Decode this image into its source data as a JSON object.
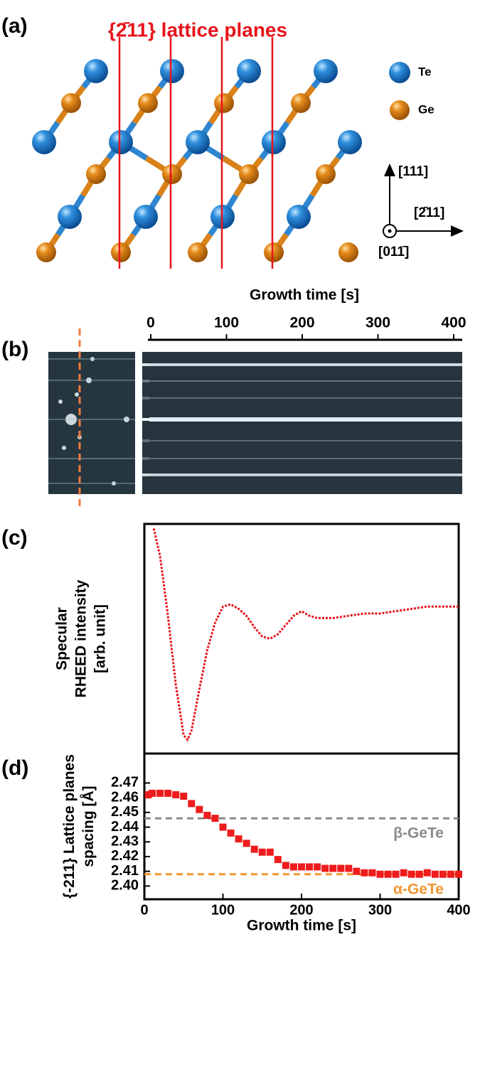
{
  "panel_labels": [
    "(a)",
    "(b)",
    "(c)",
    "(d)"
  ],
  "crystal": {
    "title": "{2̄11} lattice planes",
    "legend": [
      "Te",
      "Ge"
    ],
    "directions": [
      "[111]",
      "[2̄11]",
      "[011̄]"
    ]
  },
  "chart_data": [
    {
      "type": "rheed",
      "xlabel": "Growth time [s]",
      "xlim": [
        0,
        400
      ],
      "xticks": [
        0,
        100,
        200,
        300,
        400
      ]
    },
    {
      "type": "line",
      "ylabel": [
        "Specular",
        "RHEED intensity",
        "[arb. unit]"
      ],
      "color": "#e8141b",
      "xlim": [
        0,
        400
      ],
      "ylim": [
        0,
        10
      ],
      "x": [
        12,
        20,
        30,
        40,
        50,
        55,
        60,
        70,
        80,
        90,
        100,
        110,
        120,
        130,
        140,
        150,
        160,
        170,
        180,
        190,
        200,
        210,
        220,
        240,
        260,
        280,
        300,
        320,
        340,
        360,
        380,
        400
      ],
      "values": [
        9.8,
        8.6,
        6.0,
        3.0,
        0.8,
        0.6,
        1.0,
        2.8,
        4.5,
        5.7,
        6.4,
        6.5,
        6.3,
        6.0,
        5.5,
        5.1,
        5.0,
        5.2,
        5.6,
        6.0,
        6.2,
        6.0,
        5.9,
        5.9,
        6.0,
        6.1,
        6.1,
        6.2,
        6.3,
        6.4,
        6.4,
        6.4
      ]
    },
    {
      "type": "scatter",
      "ylabel": [
        "{-211} Lattice planes",
        "spacing [Å]"
      ],
      "xlabel": "Growth time [s]",
      "color": "#ee1c1c",
      "xlim": [
        0,
        400
      ],
      "xticks": [
        0,
        100,
        200,
        300,
        400
      ],
      "ylim": [
        2.391,
        2.49
      ],
      "yticks": [
        {
          "value": 2.4,
          "label": "2.40"
        },
        2.41,
        2.42,
        2.43,
        2.44,
        2.45,
        2.46,
        2.47
      ],
      "x": [
        5,
        10,
        20,
        30,
        40,
        50,
        60,
        70,
        80,
        90,
        100,
        110,
        120,
        130,
        140,
        150,
        160,
        170,
        180,
        190,
        200,
        210,
        220,
        230,
        240,
        250,
        260,
        270,
        280,
        290,
        300,
        310,
        320,
        330,
        340,
        350,
        360,
        370,
        380,
        390,
        400
      ],
      "values": [
        2.462,
        2.463,
        2.463,
        2.463,
        2.462,
        2.461,
        2.456,
        2.452,
        2.448,
        2.446,
        2.44,
        2.436,
        2.432,
        2.429,
        2.425,
        2.423,
        2.423,
        2.418,
        2.414,
        2.413,
        2.413,
        2.413,
        2.413,
        2.412,
        2.412,
        2.412,
        2.412,
        2.41,
        2.409,
        2.409,
        2.408,
        2.408,
        2.408,
        2.409,
        2.408,
        2.408,
        2.409,
        2.408,
        2.408,
        2.408,
        2.408
      ],
      "reference_lines": [
        {
          "value": 2.446,
          "label": "β-GeTe",
          "color": "#8a8a8a"
        },
        {
          "value": 2.408,
          "label": "α-GeTe",
          "color": "#f0962e"
        }
      ]
    }
  ]
}
